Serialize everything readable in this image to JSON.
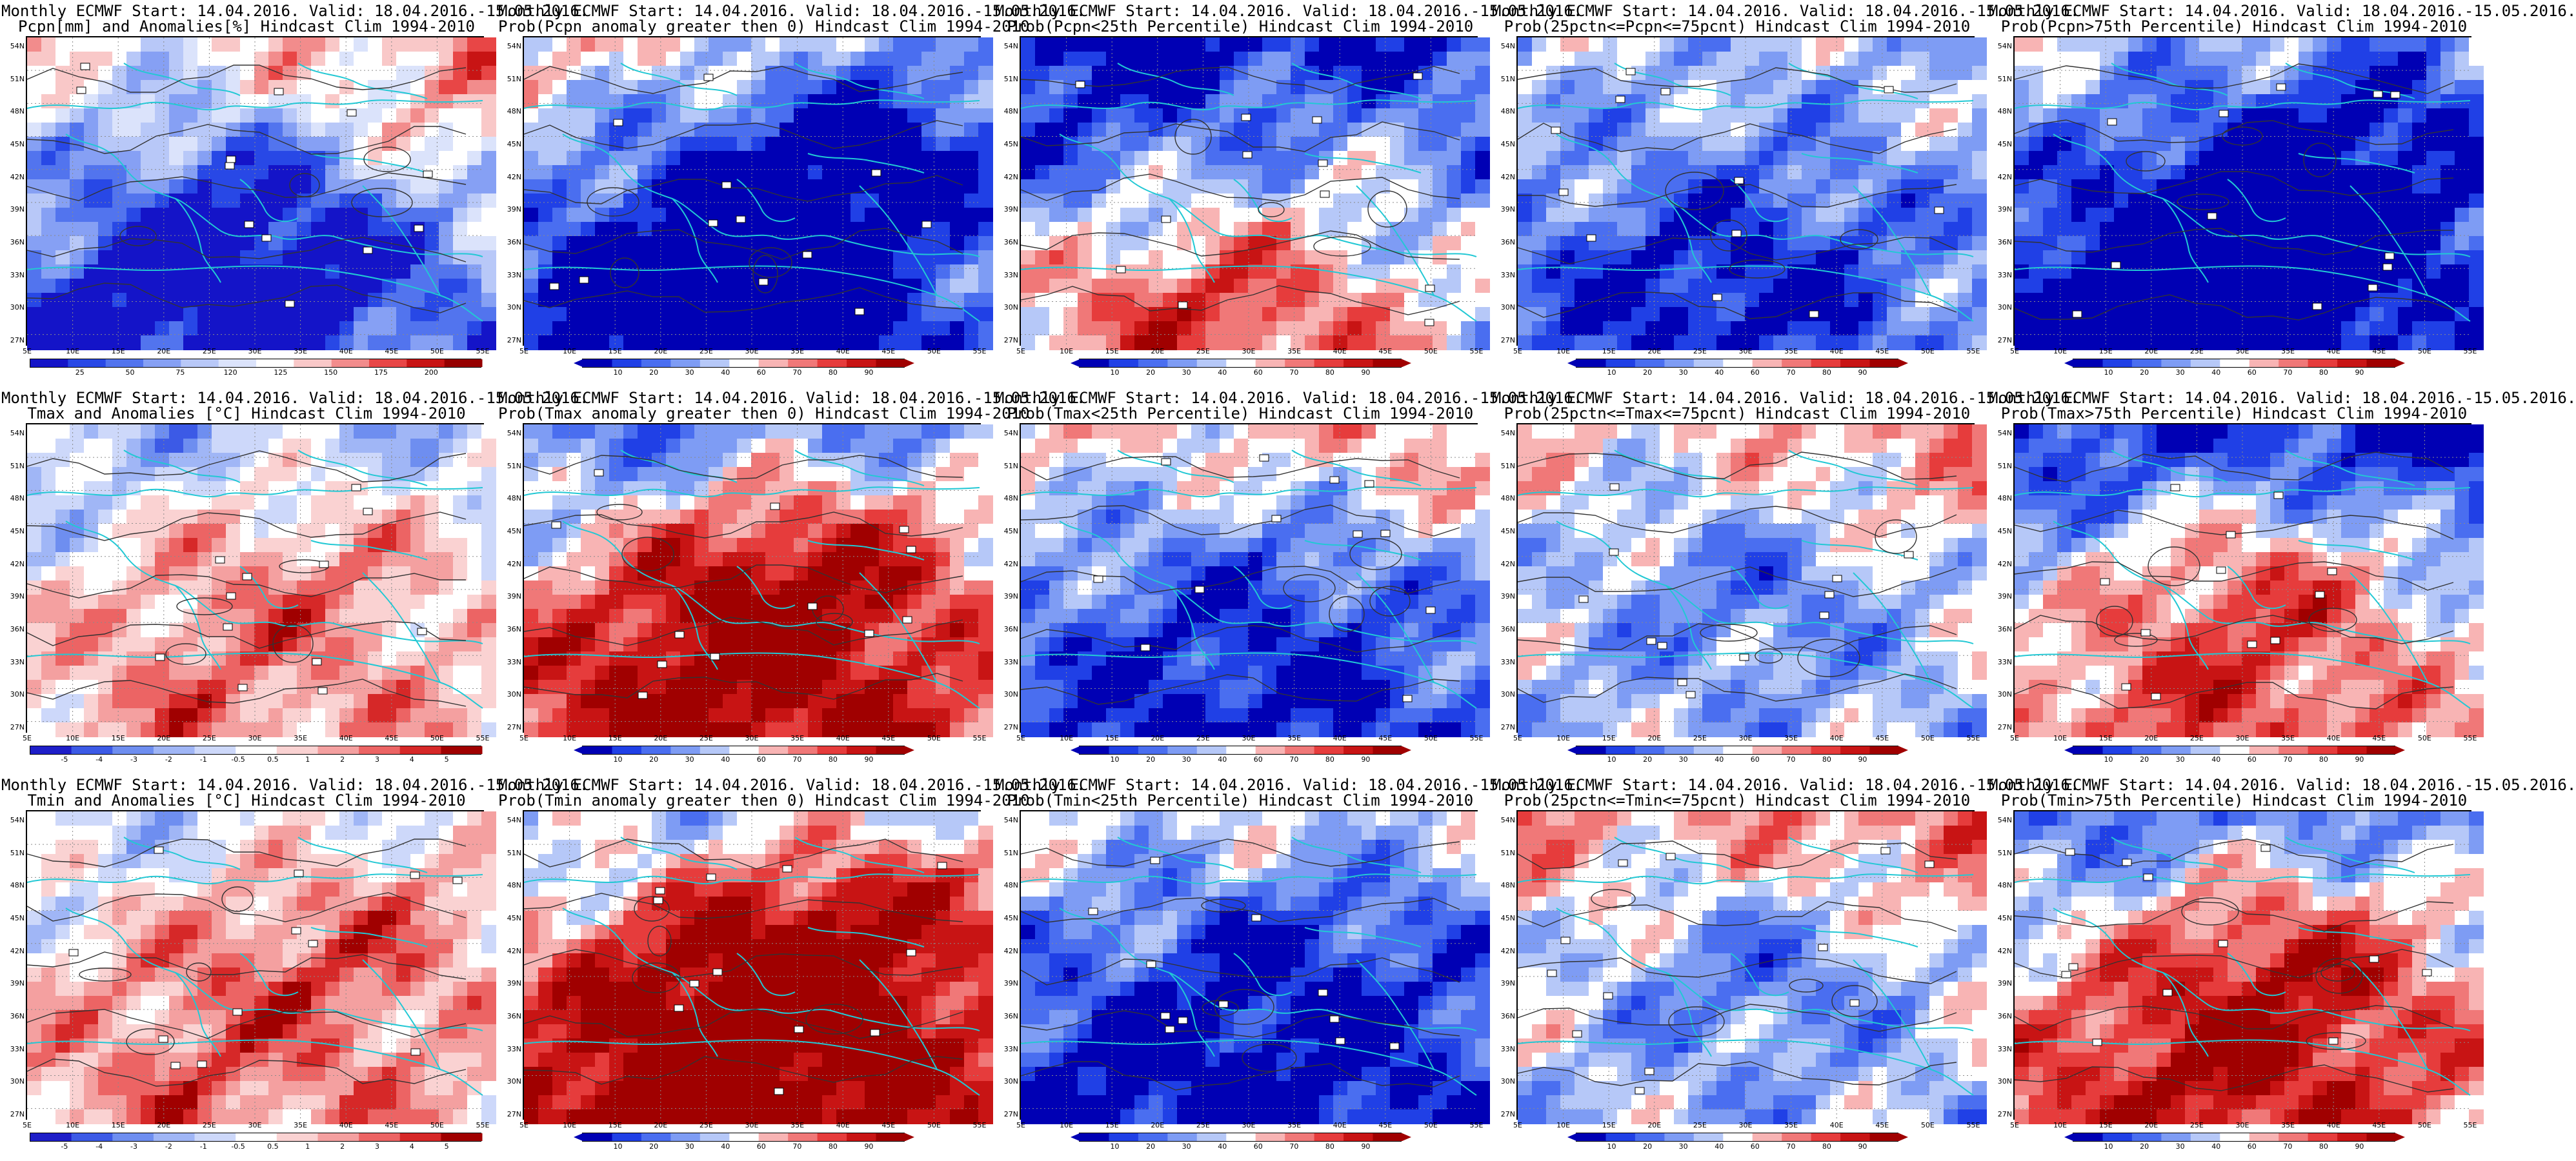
{
  "palettes": {
    "prob": [
      "#0000b4",
      "#2040e6",
      "#4a6ef0",
      "#7e9cf4",
      "#b6c8f8",
      "#ffffff",
      "#f8b4b4",
      "#f07878",
      "#e63c3c",
      "#c81414",
      "#a00000"
    ],
    "precip_anom": [
      "#1414c8",
      "#2848e6",
      "#5274ee",
      "#86a0f4",
      "#b8c8f8",
      "#dbe3fb",
      "#ffffff",
      "#f9c8c8",
      "#f28c8c",
      "#e84646",
      "#c81414",
      "#960000"
    ],
    "temp_anom": [
      "#1e1ec8",
      "#3c5ae6",
      "#6e8ef0",
      "#a0b6f6",
      "#cdd8fa",
      "#ffffff",
      "#fad2d2",
      "#f4a0a0",
      "#ec6464",
      "#d62828",
      "#a00000"
    ]
  },
  "axes": {
    "lat_labels": [
      "54N",
      "51N",
      "48N",
      "45N",
      "42N",
      "39N",
      "36N",
      "33N",
      "30N",
      "27N"
    ],
    "lon_labels": [
      "5E",
      "10E",
      "15E",
      "20E",
      "25E",
      "30E",
      "35E",
      "40E",
      "45E",
      "50E",
      "55E"
    ]
  },
  "panels": [
    {
      "name": "pcpn-anomalies",
      "line1": "Monthly ECMWF Start: 14.04.2016. Valid: 18.04.2016.-15.05.2016.",
      "line2": "Pcpn[mm] and Anomalies[%] Hindcast Clim 1994-2010",
      "palette": "precip_anom",
      "ticks": [
        "25",
        "50",
        "75",
        "120",
        "125",
        "150",
        "175",
        "200"
      ],
      "cbar_style": "full",
      "seed": 11,
      "bias": -0.35,
      "trend": [
        0.4,
        -0.6,
        -0.9,
        0.5
      ]
    },
    {
      "name": "prob-pcpn-anom-gt0",
      "line1": "Monthly ECMWF Start: 14.04.2016. Valid: 18.04.2016.-15.05.2016.",
      "line2": "Prob(Pcpn anomaly greater then 0) Hindcast Clim 1994-2010",
      "palette": "prob",
      "ticks": [
        "10",
        "20",
        "30",
        "40",
        "60",
        "70",
        "80",
        "90"
      ],
      "cbar_style": "arrow",
      "seed": 23,
      "bias": -0.45,
      "trend": [
        0.55,
        -0.7,
        -1.0,
        -0.6
      ]
    },
    {
      "name": "prob-pcpn-lt25",
      "line1": "Monthly ECMWF Start: 14.04.2016. Valid: 18.04.2016.-15.05.2016.",
      "line2": "Prob(Pcpn<25th Percentile) Hindcast Clim 1994-2010",
      "palette": "prob",
      "ticks": [
        "10",
        "20",
        "30",
        "40",
        "60",
        "70",
        "80",
        "90"
      ],
      "cbar_style": "arrow",
      "seed": 37,
      "bias": -0.2,
      "trend": [
        -0.9,
        0.2,
        0.9,
        0.3
      ]
    },
    {
      "name": "prob-25-75-pcpn",
      "line1": "Monthly ECMWF Start: 14.04.2016. Valid: 18.04.2016.-15.05.2016.",
      "line2": "Prob(25pctn<=Pcpn<=75pcnt) Hindcast Clim 1994-2010",
      "palette": "prob",
      "ticks": [
        "10",
        "20",
        "30",
        "40",
        "60",
        "70",
        "80",
        "90"
      ],
      "cbar_style": "arrow",
      "seed": 41,
      "bias": -0.3,
      "trend": [
        0.1,
        -0.2,
        -0.7,
        0.0
      ]
    },
    {
      "name": "prob-pcpn-gt75",
      "line1": "Monthly ECMWF Start: 14.04.2016. Valid: 18.04.2016.-15.05.2016.",
      "line2": "Prob(Pcpn>75th Percentile) Hindcast Clim 1994-2010",
      "palette": "prob",
      "ticks": [
        "10",
        "20",
        "30",
        "40",
        "60",
        "70",
        "80",
        "90"
      ],
      "cbar_style": "arrow",
      "seed": 53,
      "bias": -0.6,
      "trend": [
        0.4,
        -0.6,
        -0.9,
        -0.4
      ]
    },
    {
      "name": "tmax-anomalies",
      "line1": "Monthly ECMWF Start: 14.04.2016. Valid: 18.04.2016.-15.05.2016.",
      "line2": "Tmax and Anomalies [°C] Hindcast Clim 1994-2010",
      "palette": "temp_anom",
      "ticks": [
        "-5",
        "-4",
        "-3",
        "-2",
        "-1",
        "-0.5",
        "0.5",
        "1",
        "2",
        "3",
        "4",
        "5"
      ],
      "cbar_style": "full",
      "seed": 61,
      "bias": 0.2,
      "trend": [
        -0.6,
        0.5,
        0.3,
        0.1
      ]
    },
    {
      "name": "prob-tmax-anom-gt0",
      "line1": "Monthly ECMWF Start: 14.04.2016. Valid: 18.04.2016.-15.05.2016.",
      "line2": "Prob(Tmax anomaly greater then 0) Hindcast Clim 1994-2010",
      "palette": "prob",
      "ticks": [
        "10",
        "20",
        "30",
        "40",
        "60",
        "70",
        "80",
        "90"
      ],
      "cbar_style": "arrow",
      "seed": 71,
      "bias": 0.5,
      "trend": [
        -1.1,
        0.9,
        0.6,
        0.2
      ]
    },
    {
      "name": "prob-tmax-lt25",
      "line1": "Monthly ECMWF Start: 14.04.2016. Valid: 18.04.2016.-15.05.2016.",
      "line2": "Prob(Tmax<25th Percentile) Hindcast Clim 1994-2010",
      "palette": "prob",
      "ticks": [
        "10",
        "20",
        "30",
        "40",
        "60",
        "70",
        "80",
        "90"
      ],
      "cbar_style": "arrow",
      "seed": 83,
      "bias": -0.7,
      "trend": [
        0.8,
        -0.4,
        -0.3,
        0.2
      ]
    },
    {
      "name": "prob-25-75-tmax",
      "line1": "Monthly ECMWF Start: 14.04.2016. Valid: 18.04.2016.-15.05.2016.",
      "line2": "Prob(25pctn<=Tmax<=75pcnt) Hindcast Clim 1994-2010",
      "palette": "prob",
      "ticks": [
        "10",
        "20",
        "30",
        "40",
        "60",
        "70",
        "80",
        "90"
      ],
      "cbar_style": "arrow",
      "seed": 97,
      "bias": -0.2,
      "trend": [
        0.3,
        -0.5,
        -0.1,
        0.3
      ]
    },
    {
      "name": "prob-tmax-gt75",
      "line1": "Monthly ECMWF Start: 14.04.2016. Valid: 18.04.2016.-15.05.2016.",
      "line2": "Prob(Tmax>75th Percentile) Hindcast Clim 1994-2010",
      "palette": "prob",
      "ticks": [
        "10",
        "20",
        "30",
        "40",
        "60",
        "70",
        "80",
        "90"
      ],
      "cbar_style": "arrow",
      "seed": 101,
      "bias": 0.1,
      "trend": [
        -1.0,
        0.8,
        0.5,
        -0.2
      ]
    },
    {
      "name": "tmin-anomalies",
      "line1": "Monthly ECMWF Start: 14.04.2016. Valid: 18.04.2016.-15.05.2016.",
      "line2": "Tmin and Anomalies [°C] Hindcast Clim 1994-2010",
      "palette": "temp_anom",
      "ticks": [
        "-5",
        "-4",
        "-3",
        "-2",
        "-1",
        "-0.5",
        "0.5",
        "1",
        "2",
        "3",
        "4",
        "5"
      ],
      "cbar_style": "full",
      "seed": 113,
      "bias": 0.25,
      "trend": [
        -0.5,
        0.5,
        0.3,
        0.3
      ]
    },
    {
      "name": "prob-tmin-anom-gt0",
      "line1": "Monthly ECMWF Start: 14.04.2016. Valid: 18.04.2016.-15.05.2016.",
      "line2": "Prob(Tmin anomaly greater then 0) Hindcast Clim 1994-2010",
      "palette": "prob",
      "ticks": [
        "10",
        "20",
        "30",
        "40",
        "60",
        "70",
        "80",
        "90"
      ],
      "cbar_style": "arrow",
      "seed": 127,
      "bias": 0.6,
      "trend": [
        -0.9,
        0.9,
        0.7,
        0.4
      ]
    },
    {
      "name": "prob-tmin-lt25",
      "line1": "Monthly ECMWF Start: 14.04.2016. Valid: 18.04.2016.-15.05.2016.",
      "line2": "Prob(Tmin<25th Percentile) Hindcast Clim 1994-2010",
      "palette": "prob",
      "ticks": [
        "10",
        "20",
        "30",
        "40",
        "60",
        "70",
        "80",
        "90"
      ],
      "cbar_style": "arrow",
      "seed": 131,
      "bias": -0.85,
      "trend": [
        0.8,
        -0.4,
        -0.3,
        -0.1
      ]
    },
    {
      "name": "prob-25-75-tmin",
      "line1": "Monthly ECMWF Start: 14.04.2016. Valid: 18.04.2016.-15.05.2016.",
      "line2": "Prob(25pctn<=Tmin<=75pcnt) Hindcast Clim 1994-2010",
      "palette": "prob",
      "ticks": [
        "10",
        "20",
        "30",
        "40",
        "60",
        "70",
        "80",
        "90"
      ],
      "cbar_style": "arrow",
      "seed": 139,
      "bias": -0.2,
      "trend": [
        0.5,
        -0.6,
        -0.1,
        0.2
      ]
    },
    {
      "name": "prob-tmin-gt75",
      "line1": "Monthly ECMWF Start: 14.04.2016. Valid: 18.04.2016.-15.05.2016.",
      "line2": "Prob(Tmin>75th Percentile) Hindcast Clim 1994-2010",
      "palette": "prob",
      "ticks": [
        "10",
        "20",
        "30",
        "40",
        "60",
        "70",
        "80",
        "90"
      ],
      "cbar_style": "arrow",
      "seed": 149,
      "bias": 0.3,
      "trend": [
        -0.9,
        0.8,
        0.6,
        0.1
      ]
    }
  ]
}
